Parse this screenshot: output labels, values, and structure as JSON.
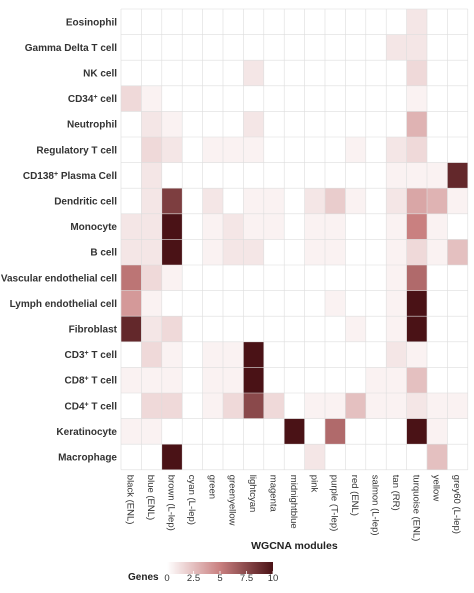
{
  "chart_data": {
    "type": "heatmap",
    "title": "",
    "xlabel": "WGCNA modules",
    "ylabel": "",
    "rows": [
      {
        "label": "Eosinophil"
      },
      {
        "label": "Gamma Delta T cell"
      },
      {
        "label": "NK cell"
      },
      {
        "label": "CD34",
        "sup": "+",
        "suffix": " cell"
      },
      {
        "label": "Neutrophil"
      },
      {
        "label": "Regulatory T cell"
      },
      {
        "label": "CD138",
        "sup": "+",
        "suffix": " Plasma Cell"
      },
      {
        "label": "Dendritic cell"
      },
      {
        "label": "Monocyte"
      },
      {
        "label": "B cell"
      },
      {
        "label": "Vascular endothelial cell"
      },
      {
        "label": "Lymph endothelial cell"
      },
      {
        "label": "Fibroblast"
      },
      {
        "label": "CD3",
        "sup": "+",
        "suffix": " T cell"
      },
      {
        "label": "CD8",
        "sup": "+",
        "suffix": " T cell"
      },
      {
        "label": "CD4",
        "sup": "+",
        "suffix": " T cell"
      },
      {
        "label": "Keratinocyte"
      },
      {
        "label": "Macrophage"
      }
    ],
    "columns": [
      "black (ENL)",
      "blue (ENL)",
      "brown (L-lep)",
      "cyan (L-lep)",
      "green",
      "greenyellow",
      "lightcyan",
      "magenta",
      "midnightblue",
      "pink",
      "purple (T-lep)",
      "red (ENL)",
      "salmon (L-lep)",
      "tan (RR)",
      "turquoise (ENL)",
      "yellow",
      "grey60 (L-lep)"
    ],
    "values": [
      [
        0,
        0,
        0,
        0,
        0,
        0,
        0,
        0,
        0,
        0,
        0,
        0,
        0,
        0,
        1,
        0,
        0
      ],
      [
        0,
        0,
        0,
        0,
        0,
        0,
        0,
        0,
        0,
        0,
        0,
        0,
        0,
        1,
        1,
        0,
        0
      ],
      [
        0,
        0,
        0,
        0,
        0,
        0,
        1,
        0,
        0,
        0,
        0,
        0,
        0,
        0,
        1.5,
        0,
        0
      ],
      [
        1.5,
        0.5,
        0,
        0,
        0,
        0,
        0,
        0,
        0,
        0,
        0,
        0,
        0,
        0,
        0.5,
        0,
        0
      ],
      [
        0,
        1,
        0.5,
        0,
        0,
        0,
        1,
        0,
        0,
        0,
        0,
        0,
        0,
        0,
        3,
        0,
        0
      ],
      [
        0,
        1.5,
        1,
        0,
        0.5,
        0.5,
        0.5,
        0,
        0,
        0,
        0,
        0.5,
        0,
        1,
        1.5,
        0,
        0
      ],
      [
        0,
        1,
        0,
        0,
        0,
        0,
        0,
        0,
        0,
        0,
        0,
        0,
        0,
        0.5,
        0.5,
        0.5,
        9
      ],
      [
        0,
        1,
        8,
        0,
        1,
        0,
        0.5,
        0.5,
        0,
        1,
        2,
        0.5,
        0,
        1,
        3.5,
        3,
        0.5
      ],
      [
        1,
        1,
        10,
        0,
        0.5,
        1,
        0.5,
        0.5,
        0,
        0.5,
        0.5,
        0,
        0,
        0.5,
        5,
        0.5,
        0
      ],
      [
        1,
        1,
        10,
        0,
        0.5,
        1,
        1,
        0,
        0,
        0.5,
        0.5,
        0,
        0,
        0.5,
        1.5,
        0.5,
        2.5
      ],
      [
        5.5,
        1.5,
        0.5,
        0,
        0,
        0,
        0,
        0,
        0,
        0,
        0,
        0,
        0,
        0.5,
        6,
        0,
        0
      ],
      [
        4,
        0.5,
        0,
        0,
        0,
        0,
        0,
        0,
        0,
        0,
        0.5,
        0,
        0,
        0.5,
        10,
        0,
        0
      ],
      [
        9,
        1,
        1.5,
        0,
        0,
        0,
        0,
        0,
        0,
        0,
        0,
        0.5,
        0,
        0.5,
        10,
        0,
        0
      ],
      [
        0,
        1.5,
        0.5,
        0,
        0.5,
        0.5,
        10,
        0,
        0,
        0,
        0,
        0,
        0,
        1,
        0.5,
        0,
        0
      ],
      [
        0.5,
        0.5,
        0.5,
        0,
        0.5,
        0.5,
        10,
        0,
        0,
        0,
        0,
        0,
        0.5,
        0.5,
        2.5,
        0,
        0
      ],
      [
        0,
        1.5,
        1.5,
        0,
        0.5,
        1.5,
        7.5,
        1.5,
        0,
        0.5,
        0.5,
        2.5,
        0.5,
        0.5,
        1,
        0.5,
        0.5
      ],
      [
        0.5,
        0.5,
        0,
        0,
        0,
        0,
        0,
        0,
        10,
        0,
        6,
        0,
        0,
        0,
        10,
        0.5,
        0
      ],
      [
        0,
        0,
        10,
        0,
        0,
        0,
        0,
        0,
        0,
        1,
        0,
        0,
        0,
        0,
        0,
        2.5,
        0
      ]
    ],
    "color_scale": {
      "min": 0,
      "max": 10,
      "low": "#ffffff",
      "mid": "#c98080",
      "high": "#4a1216"
    },
    "legend": {
      "title": "Genes",
      "position": "bottom",
      "ticks": [
        "0",
        "2.5",
        "5",
        "7.5",
        "10"
      ]
    },
    "grid": true,
    "grid_color": "#dddddd",
    "label_color": "#333333"
  }
}
